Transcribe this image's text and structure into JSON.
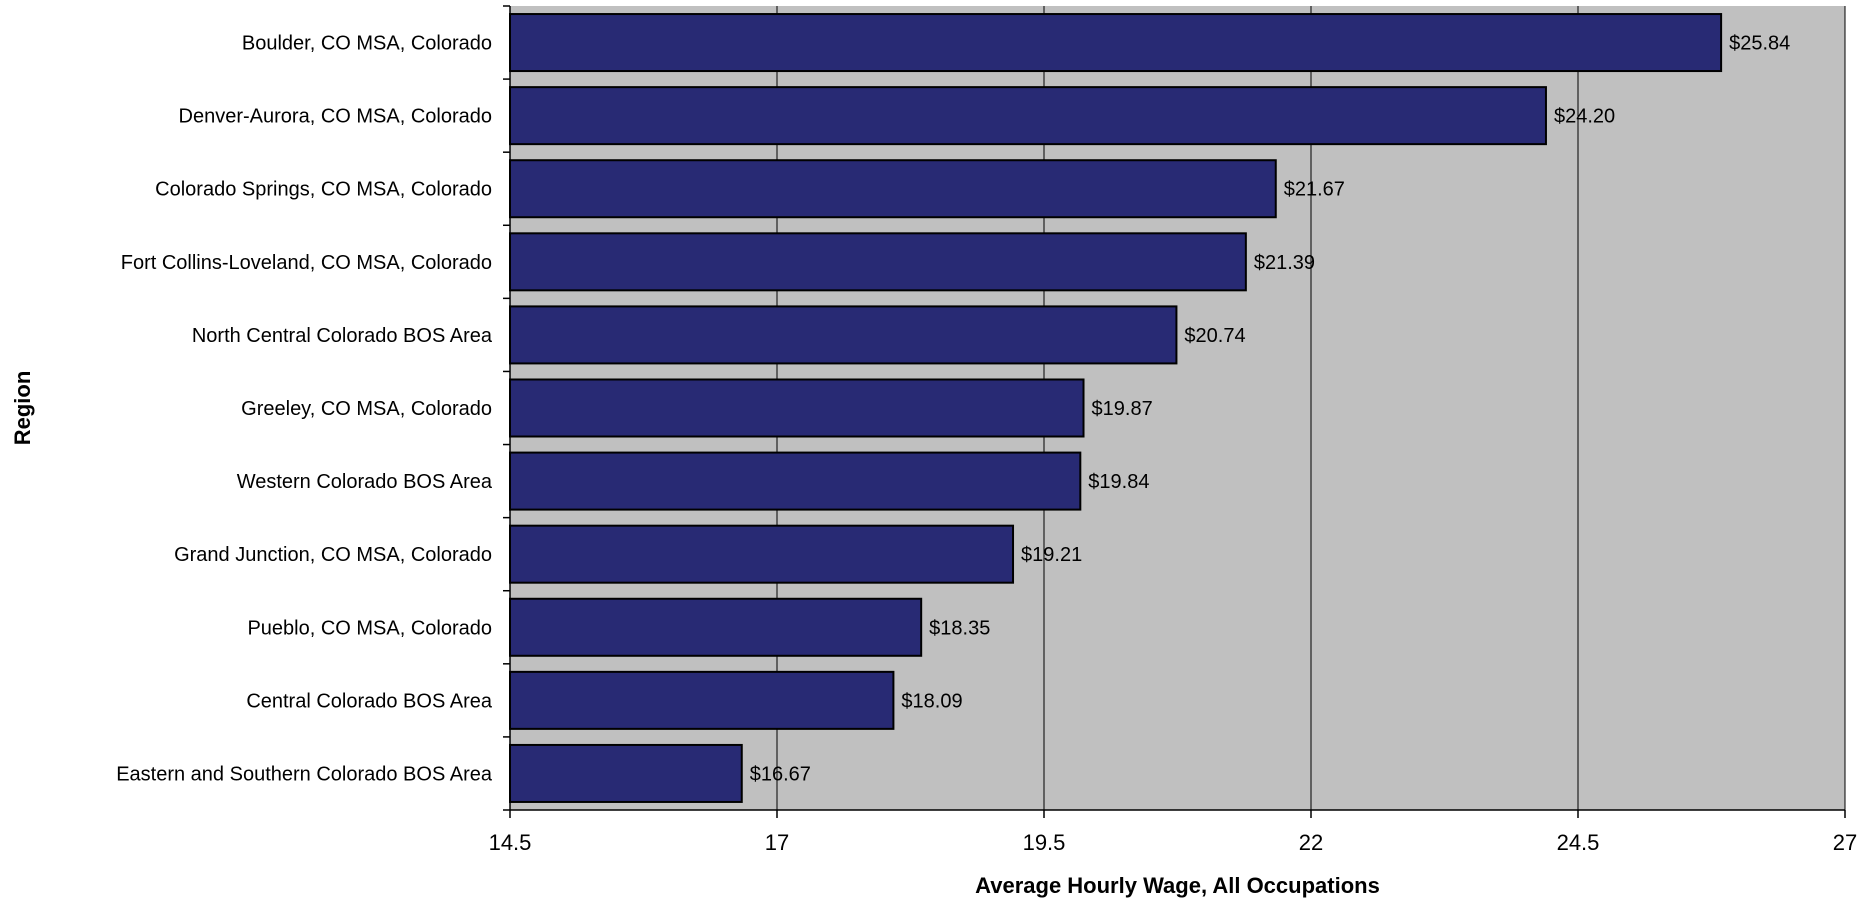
{
  "chart_data": {
    "type": "bar",
    "orientation": "horizontal",
    "categories": [
      "Boulder, CO MSA, Colorado",
      "Denver-Aurora, CO MSA, Colorado",
      "Colorado Springs, CO MSA, Colorado",
      "Fort Collins-Loveland, CO MSA, Colorado",
      "North Central Colorado BOS Area",
      "Greeley, CO MSA, Colorado",
      "Western Colorado BOS Area",
      "Grand Junction, CO MSA, Colorado",
      "Pueblo, CO MSA, Colorado",
      "Central Colorado BOS Area",
      "Eastern and Southern Colorado BOS Area"
    ],
    "values": [
      25.84,
      24.2,
      21.67,
      21.39,
      20.74,
      19.87,
      19.84,
      19.21,
      18.35,
      18.09,
      16.67
    ],
    "data_labels": [
      "$25.84",
      "$24.20",
      "$21.67",
      "$21.39",
      "$20.74",
      "$19.87",
      "$19.84",
      "$19.21",
      "$18.35",
      "$18.09",
      "$16.67"
    ],
    "xlabel": "Average Hourly Wage, All Occupations",
    "ylabel": "Region",
    "xlim": [
      14.5,
      27
    ],
    "xticks": [
      "14.5",
      "17",
      "19.5",
      "22",
      "24.5",
      "27"
    ],
    "xtick_values": [
      14.5,
      17,
      19.5,
      22,
      24.5,
      27
    ],
    "grid": "vertical",
    "legend": "none",
    "colors": {
      "bar_fill": "#282a74",
      "bar_stroke": "#000000",
      "plot_background": "#c0c0c0",
      "gridline": "#000000"
    }
  }
}
